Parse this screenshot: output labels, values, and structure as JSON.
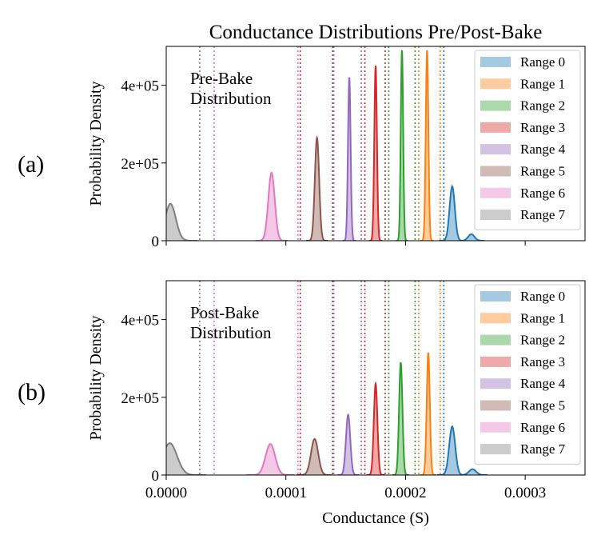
{
  "figure": {
    "title": "Conductance Distributions Pre/Post-Bake",
    "xlabel": "Conductance (S)",
    "ylabel": "Probability Density"
  },
  "colors": [
    "#1f77b4",
    "#ff7f0e",
    "#2ca02c",
    "#d62728",
    "#9467bd",
    "#8c564b",
    "#e377c2",
    "#7f7f7f"
  ],
  "chart_data": [
    {
      "type": "area",
      "panel_label": "(a)",
      "annotation": [
        "Pre-Bake",
        "Distribution"
      ],
      "xlim": [
        0,
        0.00035
      ],
      "ylim": [
        0,
        500000
      ],
      "x_ticks": [
        0.0,
        0.0001,
        0.0002,
        0.0003
      ],
      "x_tick_labels": [
        "0.0000",
        "0.0001",
        "0.0002",
        "0.0003"
      ],
      "y_ticks": [
        0,
        200000,
        400000
      ],
      "y_tick_labels": [
        "0",
        "2e+05",
        "4e+05"
      ],
      "legend_position": "right",
      "series": [
        {
          "name": "Range 0",
          "center": 0.000239,
          "peak": 140000,
          "width": 2.2e-06,
          "tail": 0.000255,
          "boundary": 0.000232
        },
        {
          "name": "Range 1",
          "center": 0.000218,
          "peak": 490000,
          "width": 1.1e-06,
          "boundary": 0.000211
        },
        {
          "name": "Range 2",
          "center": 0.000197,
          "peak": 490000,
          "width": 1e-06,
          "boundary": 0.000208
        },
        {
          "name": "Range 3",
          "center": 0.000175,
          "peak": 450000,
          "width": 1.1e-06,
          "boundary": 0.000166
        },
        {
          "name": "Range 4",
          "center": 0.000153,
          "peak": 420000,
          "width": 1.1e-06,
          "boundary": 0.00014
        },
        {
          "name": "Range 5",
          "center": 0.000126,
          "peak": 265000,
          "width": 1.8e-06,
          "boundary": 0.000139
        },
        {
          "name": "Range 6",
          "center": 8.8e-05,
          "peak": 175000,
          "width": 2.7e-06,
          "boundary": 4e-05
        },
        {
          "name": "Range 7",
          "center": 3.5e-06,
          "peak": 95000,
          "width": 4.5e-06,
          "boundary": 2.8e-05
        }
      ],
      "extra_lines": [
        {
          "x": 0.00011,
          "color_index": 6
        },
        {
          "x": 0.000112,
          "color_index": 3
        },
        {
          "x": 0.000163,
          "color_index": 4
        },
        {
          "x": 0.000183,
          "color_index": 3
        },
        {
          "x": 0.000186,
          "color_index": 2
        },
        {
          "x": 0.000229,
          "color_index": 1
        }
      ]
    },
    {
      "type": "area",
      "panel_label": "(b)",
      "annotation": [
        "Post-Bake",
        "Distribution"
      ],
      "xlim": [
        0,
        0.00035
      ],
      "ylim": [
        0,
        500000
      ],
      "x_ticks": [
        0.0,
        0.0001,
        0.0002,
        0.0003
      ],
      "x_tick_labels": [
        "0.0000",
        "0.0001",
        "0.0002",
        "0.0003"
      ],
      "y_ticks": [
        0,
        200000,
        400000
      ],
      "y_tick_labels": [
        "0",
        "2e+05",
        "4e+05"
      ],
      "legend_position": "right",
      "series": [
        {
          "name": "Range 0",
          "center": 0.000239,
          "peak": 125000,
          "width": 2.5e-06,
          "tail": 0.000256,
          "boundary": 0.000232
        },
        {
          "name": "Range 1",
          "center": 0.000219,
          "peak": 315000,
          "width": 1.3e-06,
          "boundary": 0.000211
        },
        {
          "name": "Range 2",
          "center": 0.000196,
          "peak": 290000,
          "width": 1.4e-06,
          "boundary": 0.000208
        },
        {
          "name": "Range 3",
          "center": 0.000175,
          "peak": 235000,
          "width": 1.5e-06,
          "boundary": 0.000166
        },
        {
          "name": "Range 4",
          "center": 0.000152,
          "peak": 155000,
          "width": 1.8e-06,
          "boundary": 0.00014
        },
        {
          "name": "Range 5",
          "center": 0.000124,
          "peak": 93000,
          "width": 3e-06,
          "boundary": 0.000139
        },
        {
          "name": "Range 6",
          "center": 8.7e-05,
          "peak": 80000,
          "width": 4e-06,
          "boundary": 4e-05
        },
        {
          "name": "Range 7",
          "center": 3e-06,
          "peak": 82000,
          "width": 6e-06,
          "boundary": 2.8e-05
        }
      ],
      "extra_lines": [
        {
          "x": 0.00011,
          "color_index": 6
        },
        {
          "x": 0.000112,
          "color_index": 3
        },
        {
          "x": 0.000163,
          "color_index": 4
        },
        {
          "x": 0.000183,
          "color_index": 3
        },
        {
          "x": 0.000186,
          "color_index": 2
        },
        {
          "x": 0.000229,
          "color_index": 1
        }
      ]
    }
  ]
}
